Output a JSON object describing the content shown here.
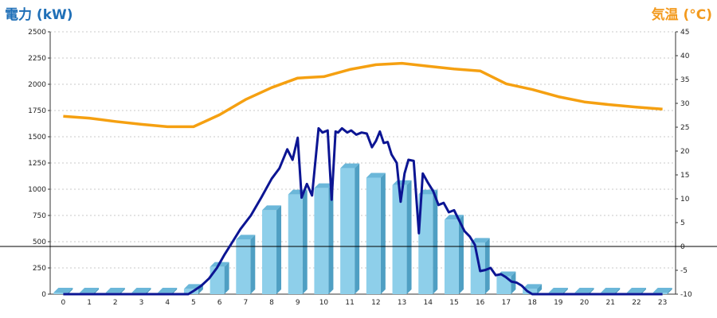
{
  "chart_data": {
    "type": "bar+line",
    "left_axis_title": "電力 (kW)",
    "right_axis_title": "気温 (°C)",
    "x_ticks": [
      "0",
      "1",
      "2",
      "3",
      "4",
      "5",
      "6",
      "7",
      "8",
      "9",
      "10",
      "11",
      "12",
      "13",
      "14",
      "15",
      "16",
      "17",
      "18",
      "19",
      "20",
      "21",
      "22",
      "23"
    ],
    "left_ylim": [
      0,
      2500
    ],
    "left_ticks": [
      "0",
      "250",
      "500",
      "750",
      "1000",
      "1250",
      "1500",
      "1750",
      "2000",
      "2250",
      "2500"
    ],
    "right_ylim": [
      -10,
      45
    ],
    "right_ticks": [
      "-10",
      "-5",
      "0",
      "5",
      "10",
      "15",
      "20",
      "25",
      "30",
      "35",
      "40",
      "45"
    ],
    "grid": true,
    "colors": {
      "left_title": "#1f6fb7",
      "right_title": "#f39a1e",
      "bars_front": "#8ecfea",
      "bars_side": "#4f9fc3",
      "bars_top": "#6bb7d9",
      "power_line": "#0c1593",
      "temp_line": "#f5a011",
      "zero_line": "#000000"
    },
    "bars": {
      "values": [
        15,
        15,
        15,
        15,
        15,
        50,
        260,
        520,
        800,
        950,
        1010,
        1200,
        1110,
        1040,
        950,
        710,
        490,
        170,
        50,
        15,
        15,
        15,
        15,
        15
      ]
    },
    "power_line": {
      "x": [
        0,
        1,
        2,
        3,
        4,
        4.8,
        5,
        5.3,
        5.6,
        5.9,
        6.2,
        6.5,
        6.8,
        7.2,
        7.6,
        8,
        8.3,
        8.6,
        8.8,
        9,
        9.15,
        9.35,
        9.55,
        9.8,
        9.95,
        10.15,
        10.3,
        10.45,
        10.55,
        10.7,
        10.9,
        11.05,
        11.25,
        11.45,
        11.65,
        11.85,
        12,
        12.15,
        12.3,
        12.45,
        12.6,
        12.8,
        12.95,
        13.1,
        13.25,
        13.45,
        13.65,
        13.8,
        14,
        14.2,
        14.4,
        14.6,
        14.8,
        15,
        15.2,
        15.4,
        15.6,
        15.8,
        16,
        16.2,
        16.4,
        16.6,
        16.8,
        17,
        17.2,
        17.4,
        17.6,
        17.8,
        18,
        19,
        20,
        21,
        22,
        23
      ],
      "y": [
        0,
        0,
        0,
        0,
        0,
        0,
        30,
        80,
        150,
        250,
        380,
        500,
        620,
        750,
        920,
        1100,
        1200,
        1380,
        1280,
        1490,
        920,
        1050,
        940,
        1580,
        1540,
        1560,
        900,
        1550,
        1540,
        1580,
        1540,
        1560,
        1520,
        1540,
        1530,
        1400,
        1460,
        1550,
        1440,
        1450,
        1330,
        1250,
        880,
        1150,
        1280,
        1270,
        580,
        1150,
        1060,
        980,
        850,
        870,
        780,
        800,
        700,
        600,
        550,
        470,
        220,
        230,
        250,
        180,
        190,
        160,
        120,
        110,
        80,
        30,
        0,
        0,
        0,
        0,
        0,
        0
      ]
    },
    "temp_line": {
      "x": [
        0,
        1,
        2,
        3,
        4,
        5,
        6,
        7,
        8,
        9,
        10,
        11,
        12,
        13,
        14,
        15,
        16,
        17,
        18,
        19,
        20,
        21,
        22,
        23
      ],
      "y": [
        27.3,
        26.9,
        26.2,
        25.6,
        25.1,
        25.1,
        27.6,
        30.8,
        33.3,
        35.3,
        35.6,
        37.1,
        38.1,
        38.4,
        37.8,
        37.2,
        36.8,
        34.1,
        32.9,
        31.4,
        30.3,
        29.7,
        29.2,
        28.8
      ]
    }
  }
}
